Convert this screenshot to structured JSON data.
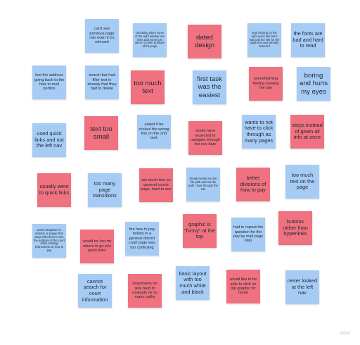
{
  "board": {
    "logo": "miro",
    "notes": [
      {
        "text": "can't see previous page info even if it's relevant",
        "color": "blue"
      },
      {
        "text": "confusing when some of the right sidebar are links and some just direct to other portions of the page",
        "color": "blue"
      },
      {
        "text": "dated design",
        "color": "pink"
      },
      {
        "text": "kept clicking on the right quick link but it was just the link for the page that was already selected",
        "color": "blue"
      },
      {
        "text": "the fonts are bad and hard to read",
        "color": "blue"
      },
      {
        "text": "lost the address going back to the how to mail portion",
        "color": "blue"
      },
      {
        "text": "search bar had filler text in already that they had to delete",
        "color": "blue"
      },
      {
        "text": "too much text",
        "color": "pink"
      },
      {
        "text": "first task was the easiest",
        "color": "blue"
      },
      {
        "text": "overwhelming feeling viewing the site",
        "color": "pink"
      },
      {
        "text": "boring and hurts my eyes",
        "color": "blue"
      },
      {
        "text": "used quick links and not the left nav",
        "color": "blue"
      },
      {
        "text": "text too small",
        "color": "pink"
      },
      {
        "text": "asked if he clicked the wrong link on the 2nd task",
        "color": "blue"
      },
      {
        "text": "would have expected to navigate through the nav bars",
        "color": "pink"
      },
      {
        "text": "wants to not have to click through as many pages",
        "color": "blue"
      },
      {
        "text": "steps instead of given all info at once",
        "color": "pink"
      },
      {
        "text": "usually went to quick links",
        "color": "pink"
      },
      {
        "text": "too many page transitions",
        "color": "blue"
      },
      {
        "text": "too much text on general courts page, hard to see",
        "color": "pink"
      },
      {
        "text": "breadcrumbs are the file path and not the path I took through the site",
        "color": "blue"
      },
      {
        "text": "better divisions of how to pay",
        "color": "pink"
      },
      {
        "text": "too much text on the page",
        "color": "blue"
      },
      {
        "text": "wants dropdown in sidebar or popup that stays with them to see the address of the court while reading instructions on how to pay",
        "color": "blue"
      },
      {
        "text": "would be lost for where to go w/o quick links",
        "color": "pink"
      },
      {
        "text": "the how to pay tickets in a general district court page was too confusing",
        "color": "blue"
      },
      {
        "text": "graphic is \"funny\" at the top",
        "color": "pink"
      },
      {
        "text": "had to repeat the question for the pay by mail page step",
        "color": "blue"
      },
      {
        "text": "buttons rather than hyperlinks",
        "color": "pink"
      },
      {
        "text": "cannot search for court information",
        "color": "blue"
      },
      {
        "text": "dropdowns on side hard to navigate w/ so many paths",
        "color": "pink"
      },
      {
        "text": "basic layout with too much white and black",
        "color": "blue"
      },
      {
        "text": "would like to be able to click on top graphic for home",
        "color": "pink"
      },
      {
        "text": "never looked at the left nav",
        "color": "blue"
      }
    ]
  }
}
